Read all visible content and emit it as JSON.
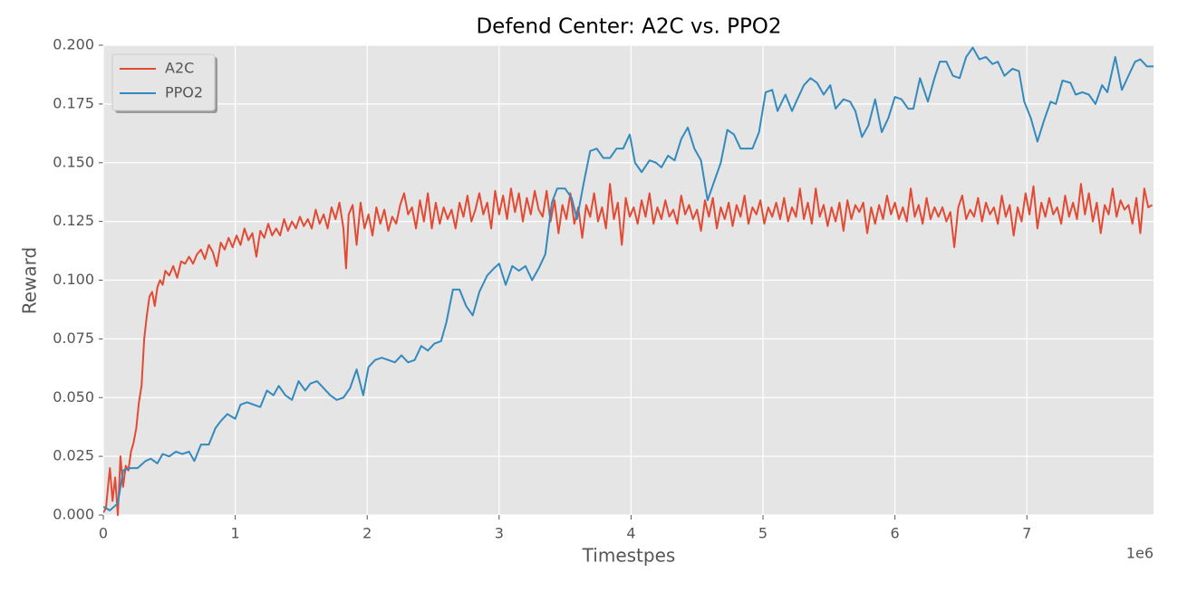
{
  "chart_data": {
    "type": "line",
    "title": "Defend Center: A2C vs. PPO2",
    "x_label": "Timestpes",
    "y_label": "Reward",
    "x_offset_label": "1e6",
    "xlim": [
      0,
      7.96
    ],
    "ylim": [
      0,
      0.2
    ],
    "xticks": [
      0,
      1,
      2,
      3,
      4,
      5,
      6,
      7
    ],
    "yticks": [
      {
        "value": 0,
        "label": "0.000"
      },
      {
        "value": 0.025,
        "label": "0.025"
      },
      {
        "value": 0.05,
        "label": "0.050"
      },
      {
        "value": 0.075,
        "label": "0.075"
      },
      {
        "value": 0.1,
        "label": "0.100"
      },
      {
        "value": 0.125,
        "label": "0.125"
      },
      {
        "value": 0.15,
        "label": "0.150"
      },
      {
        "value": 0.175,
        "label": "0.175"
      },
      {
        "value": 0.2,
        "label": "0.200"
      }
    ],
    "grid": true,
    "legend": "upper left",
    "series": [
      {
        "name": "A2C",
        "color": "#E24A33",
        "x": [
          0,
          0.02,
          0.05,
          0.07,
          0.09,
          0.11,
          0.13,
          0.15,
          0.17,
          0.19,
          0.21,
          0.23,
          0.25,
          0.27,
          0.29,
          0.31,
          0.33,
          0.35,
          0.37,
          0.39,
          0.41,
          0.43,
          0.45,
          0.47,
          0.5,
          0.53,
          0.56,
          0.59,
          0.62,
          0.65,
          0.68,
          0.71,
          0.74,
          0.77,
          0.8,
          0.83,
          0.86,
          0.89,
          0.92,
          0.95,
          0.98,
          1.01,
          1.04,
          1.07,
          1.1,
          1.13,
          1.16,
          1.19,
          1.22,
          1.25,
          1.28,
          1.31,
          1.34,
          1.37,
          1.4,
          1.43,
          1.46,
          1.49,
          1.52,
          1.55,
          1.58,
          1.61,
          1.64,
          1.67,
          1.7,
          1.73,
          1.76,
          1.79,
          1.82,
          1.84,
          1.86,
          1.89,
          1.92,
          1.95,
          1.98,
          2.01,
          2.04,
          2.07,
          2.1,
          2.13,
          2.16,
          2.19,
          2.22,
          2.25,
          2.28,
          2.31,
          2.34,
          2.37,
          2.4,
          2.43,
          2.46,
          2.49,
          2.52,
          2.55,
          2.58,
          2.61,
          2.64,
          2.67,
          2.7,
          2.73,
          2.76,
          2.79,
          2.82,
          2.85,
          2.88,
          2.91,
          2.94,
          2.97,
          3.0,
          3.03,
          3.06,
          3.09,
          3.12,
          3.15,
          3.18,
          3.21,
          3.24,
          3.27,
          3.3,
          3.33,
          3.36,
          3.39,
          3.42,
          3.45,
          3.48,
          3.51,
          3.54,
          3.57,
          3.6,
          3.63,
          3.66,
          3.69,
          3.72,
          3.75,
          3.78,
          3.81,
          3.84,
          3.87,
          3.9,
          3.93,
          3.96,
          3.99,
          4.02,
          4.05,
          4.08,
          4.11,
          4.14,
          4.17,
          4.2,
          4.23,
          4.26,
          4.29,
          4.32,
          4.35,
          4.38,
          4.41,
          4.44,
          4.47,
          4.5,
          4.53,
          4.56,
          4.59,
          4.62,
          4.65,
          4.68,
          4.71,
          4.74,
          4.77,
          4.8,
          4.83,
          4.86,
          4.89,
          4.92,
          4.95,
          4.98,
          5.01,
          5.04,
          5.07,
          5.1,
          5.13,
          5.16,
          5.19,
          5.22,
          5.25,
          5.28,
          5.31,
          5.34,
          5.37,
          5.4,
          5.43,
          5.46,
          5.49,
          5.52,
          5.55,
          5.58,
          5.61,
          5.64,
          5.67,
          5.7,
          5.73,
          5.76,
          5.79,
          5.82,
          5.85,
          5.88,
          5.91,
          5.94,
          5.97,
          6.0,
          6.03,
          6.06,
          6.09,
          6.12,
          6.15,
          6.18,
          6.21,
          6.24,
          6.27,
          6.3,
          6.33,
          6.36,
          6.39,
          6.42,
          6.45,
          6.48,
          6.51,
          6.54,
          6.57,
          6.6,
          6.63,
          6.66,
          6.69,
          6.72,
          6.75,
          6.78,
          6.81,
          6.84,
          6.87,
          6.9,
          6.93,
          6.96,
          6.99,
          7.02,
          7.05,
          7.08,
          7.11,
          7.14,
          7.17,
          7.2,
          7.23,
          7.26,
          7.29,
          7.32,
          7.35,
          7.38,
          7.41,
          7.44,
          7.47,
          7.5,
          7.53,
          7.56,
          7.59,
          7.62,
          7.65,
          7.68,
          7.71,
          7.74,
          7.77,
          7.8,
          7.83,
          7.86,
          7.89,
          7.92,
          7.95
        ],
        "values": [
          0.001,
          0.003,
          0.02,
          0.006,
          0.016,
          0.0,
          0.025,
          0.012,
          0.021,
          0.019,
          0.027,
          0.031,
          0.037,
          0.048,
          0.055,
          0.075,
          0.085,
          0.093,
          0.095,
          0.089,
          0.097,
          0.1,
          0.098,
          0.104,
          0.102,
          0.106,
          0.101,
          0.108,
          0.107,
          0.11,
          0.107,
          0.111,
          0.113,
          0.109,
          0.115,
          0.112,
          0.106,
          0.116,
          0.113,
          0.118,
          0.114,
          0.119,
          0.115,
          0.122,
          0.117,
          0.12,
          0.11,
          0.121,
          0.118,
          0.124,
          0.119,
          0.122,
          0.119,
          0.126,
          0.121,
          0.125,
          0.122,
          0.127,
          0.123,
          0.126,
          0.122,
          0.13,
          0.124,
          0.128,
          0.122,
          0.131,
          0.126,
          0.133,
          0.122,
          0.105,
          0.128,
          0.132,
          0.115,
          0.133,
          0.122,
          0.128,
          0.119,
          0.131,
          0.124,
          0.13,
          0.121,
          0.127,
          0.124,
          0.132,
          0.137,
          0.128,
          0.131,
          0.122,
          0.134,
          0.125,
          0.137,
          0.122,
          0.133,
          0.124,
          0.131,
          0.126,
          0.13,
          0.122,
          0.133,
          0.127,
          0.136,
          0.125,
          0.13,
          0.137,
          0.128,
          0.133,
          0.122,
          0.138,
          0.128,
          0.136,
          0.126,
          0.139,
          0.129,
          0.137,
          0.125,
          0.135,
          0.128,
          0.138,
          0.13,
          0.127,
          0.138,
          0.125,
          0.134,
          0.12,
          0.132,
          0.126,
          0.137,
          0.124,
          0.131,
          0.118,
          0.132,
          0.127,
          0.137,
          0.125,
          0.131,
          0.122,
          0.141,
          0.126,
          0.133,
          0.115,
          0.135,
          0.127,
          0.131,
          0.124,
          0.134,
          0.127,
          0.137,
          0.124,
          0.131,
          0.126,
          0.134,
          0.127,
          0.13,
          0.124,
          0.136,
          0.128,
          0.132,
          0.126,
          0.13,
          0.121,
          0.134,
          0.127,
          0.135,
          0.122,
          0.131,
          0.126,
          0.133,
          0.123,
          0.132,
          0.127,
          0.136,
          0.124,
          0.131,
          0.128,
          0.134,
          0.124,
          0.131,
          0.127,
          0.133,
          0.126,
          0.135,
          0.125,
          0.131,
          0.127,
          0.139,
          0.126,
          0.133,
          0.124,
          0.139,
          0.127,
          0.132,
          0.123,
          0.131,
          0.125,
          0.133,
          0.121,
          0.134,
          0.126,
          0.132,
          0.129,
          0.133,
          0.12,
          0.131,
          0.124,
          0.132,
          0.126,
          0.136,
          0.128,
          0.133,
          0.126,
          0.131,
          0.125,
          0.139,
          0.127,
          0.132,
          0.124,
          0.135,
          0.126,
          0.131,
          0.127,
          0.131,
          0.125,
          0.129,
          0.114,
          0.131,
          0.136,
          0.126,
          0.13,
          0.127,
          0.135,
          0.125,
          0.133,
          0.128,
          0.131,
          0.124,
          0.136,
          0.127,
          0.132,
          0.119,
          0.131,
          0.125,
          0.137,
          0.128,
          0.14,
          0.122,
          0.133,
          0.127,
          0.135,
          0.128,
          0.131,
          0.124,
          0.136,
          0.127,
          0.133,
          0.126,
          0.141,
          0.128,
          0.137,
          0.125,
          0.133,
          0.12,
          0.132,
          0.128,
          0.139,
          0.127,
          0.134,
          0.13,
          0.132,
          0.124,
          0.135,
          0.12,
          0.139,
          0.131,
          0.132
        ]
      },
      {
        "name": "PPO2",
        "color": "#348ABD",
        "x": [
          0,
          0.05,
          0.11,
          0.15,
          0.21,
          0.26,
          0.32,
          0.36,
          0.41,
          0.45,
          0.5,
          0.55,
          0.6,
          0.65,
          0.69,
          0.74,
          0.8,
          0.85,
          0.89,
          0.94,
          1.0,
          1.04,
          1.09,
          1.14,
          1.19,
          1.24,
          1.29,
          1.33,
          1.38,
          1.43,
          1.48,
          1.53,
          1.57,
          1.62,
          1.67,
          1.72,
          1.77,
          1.82,
          1.87,
          1.92,
          1.97,
          2.01,
          2.06,
          2.11,
          2.16,
          2.21,
          2.26,
          2.31,
          2.36,
          2.41,
          2.46,
          2.51,
          2.56,
          2.6,
          2.65,
          2.7,
          2.75,
          2.8,
          2.85,
          2.91,
          2.96,
          3.0,
          3.05,
          3.1,
          3.15,
          3.2,
          3.25,
          3.3,
          3.35,
          3.4,
          3.44,
          3.5,
          3.55,
          3.59,
          3.64,
          3.69,
          3.74,
          3.79,
          3.84,
          3.89,
          3.94,
          3.99,
          4.03,
          4.08,
          4.14,
          4.19,
          4.23,
          4.28,
          4.33,
          4.38,
          4.43,
          4.48,
          4.53,
          4.58,
          4.63,
          4.68,
          4.73,
          4.78,
          4.83,
          4.87,
          4.92,
          4.97,
          5.02,
          5.07,
          5.11,
          5.17,
          5.22,
          5.26,
          5.31,
          5.36,
          5.41,
          5.46,
          5.51,
          5.55,
          5.61,
          5.66,
          5.7,
          5.75,
          5.8,
          5.85,
          5.9,
          5.95,
          6.0,
          6.05,
          6.1,
          6.14,
          6.19,
          6.25,
          6.3,
          6.34,
          6.39,
          6.44,
          6.49,
          6.54,
          6.59,
          6.64,
          6.69,
          6.74,
          6.78,
          6.83,
          6.89,
          6.94,
          6.98,
          7.03,
          7.08,
          7.13,
          7.18,
          7.22,
          7.27,
          7.33,
          7.37,
          7.42,
          7.47,
          7.52,
          7.57,
          7.61,
          7.67,
          7.72,
          7.77,
          7.82,
          7.86,
          7.91,
          7.96
        ],
        "values": [
          0.0035,
          0.002,
          0.005,
          0.019,
          0.02,
          0.02,
          0.023,
          0.024,
          0.022,
          0.026,
          0.025,
          0.027,
          0.026,
          0.027,
          0.023,
          0.03,
          0.03,
          0.037,
          0.04,
          0.043,
          0.041,
          0.047,
          0.048,
          0.047,
          0.046,
          0.053,
          0.051,
          0.055,
          0.051,
          0.049,
          0.057,
          0.053,
          0.056,
          0.057,
          0.054,
          0.051,
          0.049,
          0.05,
          0.054,
          0.062,
          0.051,
          0.063,
          0.066,
          0.067,
          0.066,
          0.065,
          0.068,
          0.065,
          0.066,
          0.072,
          0.07,
          0.073,
          0.074,
          0.082,
          0.096,
          0.096,
          0.089,
          0.085,
          0.095,
          0.102,
          0.105,
          0.107,
          0.098,
          0.106,
          0.104,
          0.106,
          0.1,
          0.105,
          0.111,
          0.133,
          0.139,
          0.139,
          0.135,
          0.126,
          0.141,
          0.155,
          0.156,
          0.152,
          0.152,
          0.156,
          0.156,
          0.162,
          0.15,
          0.146,
          0.151,
          0.15,
          0.148,
          0.153,
          0.151,
          0.16,
          0.165,
          0.156,
          0.151,
          0.134,
          0.142,
          0.15,
          0.164,
          0.162,
          0.156,
          0.156,
          0.156,
          0.163,
          0.18,
          0.181,
          0.172,
          0.179,
          0.172,
          0.177,
          0.183,
          0.186,
          0.184,
          0.179,
          0.183,
          0.173,
          0.177,
          0.176,
          0.172,
          0.161,
          0.166,
          0.177,
          0.163,
          0.169,
          0.178,
          0.177,
          0.173,
          0.173,
          0.186,
          0.176,
          0.186,
          0.193,
          0.193,
          0.187,
          0.186,
          0.195,
          0.199,
          0.194,
          0.195,
          0.192,
          0.193,
          0.187,
          0.19,
          0.189,
          0.176,
          0.169,
          0.159,
          0.168,
          0.176,
          0.175,
          0.185,
          0.184,
          0.179,
          0.18,
          0.179,
          0.175,
          0.183,
          0.18,
          0.195,
          0.181,
          0.187,
          0.193,
          0.194,
          0.191,
          0.191
        ]
      }
    ]
  }
}
